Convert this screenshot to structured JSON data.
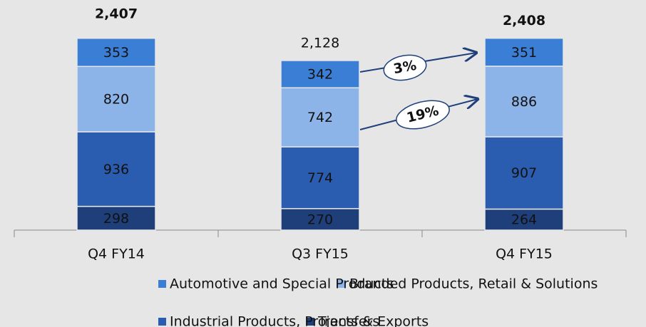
{
  "chart_data": {
    "type": "stacked_bar",
    "categories": [
      "Q4 FY14",
      "Q3 FY15",
      "Q4 FY15"
    ],
    "series": [
      {
        "name": "Transfers",
        "color": "#1f3f7a",
        "values": [
          298,
          270,
          264
        ]
      },
      {
        "name": "Industrial Products, Projects & Exports",
        "color": "#2a5db0",
        "values": [
          936,
          774,
          907
        ]
      },
      {
        "name": "Branded Products, Retail & Solutions",
        "color": "#8db4e8",
        "values": [
          820,
          742,
          886
        ]
      },
      {
        "name": "Automotive and Special Products",
        "color": "#3a7fd5",
        "values": [
          353,
          342,
          351
        ]
      }
    ],
    "totals": [
      2407,
      2128,
      2408
    ],
    "totals_labels": [
      "2,407",
      "2,128",
      "2,408"
    ],
    "totals_bold": [
      true,
      false,
      true
    ],
    "annotations": [
      "3%",
      "19%"
    ],
    "ylim": [
      0,
      2700
    ]
  }
}
